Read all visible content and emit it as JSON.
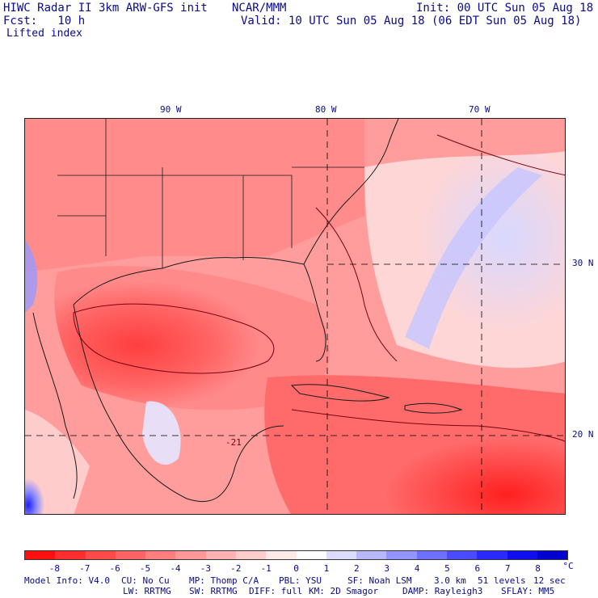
{
  "header": {
    "model_title": "HIWC Radar II 3km ARW-GFS init",
    "org": "NCAR/MMM",
    "init": "Init: 00 UTC Sun 05 Aug 18",
    "forecast": "Fcst:   10 h",
    "valid": "Valid: 10 UTC Sun 05 Aug 18 (06 EDT Sun 05 Aug 18)",
    "field": "Lifted index"
  },
  "map": {
    "longitude_labels": [
      "90 W",
      "80 W",
      "70 W"
    ],
    "latitude_labels": [
      "30 N",
      "20 N"
    ],
    "contour_label": "-21",
    "colors": {
      "land_outline": "#1a1a1a",
      "contour": "#7a0010",
      "grid": "#000000"
    }
  },
  "colorbar": {
    "tick_labels": [
      "-8",
      "-7",
      "-6",
      "-5",
      "-4",
      "-3",
      "-2",
      "-1",
      "0",
      "1",
      "2",
      "3",
      "4",
      "5",
      "6",
      "7",
      "8"
    ],
    "unit": "°C",
    "colors": [
      "#ff1010",
      "#ff2e2e",
      "#ff4a4a",
      "#ff6464",
      "#ff7e7e",
      "#ff9898",
      "#ffb2b2",
      "#ffcccc",
      "#ffeaea",
      "#ffffff",
      "#dcdcff",
      "#b8b8ff",
      "#9494ff",
      "#7070ff",
      "#4c4cff",
      "#2a2aff",
      "#0e0eee",
      "#0000d0"
    ]
  },
  "footer": {
    "line1": [
      "Model Info: V4.0",
      "CU: No Cu",
      "MP: Thomp C/A",
      "PBL: YSU",
      "SF: Noah LSM",
      "3.0 km",
      "51 levels",
      "12 sec"
    ],
    "line2": [
      "LW: RRTMG",
      "SW: RRTMG",
      "DIFF: full",
      "KM: 2D Smagor",
      "DAMP: Rayleigh3",
      "SFLAY: MM5"
    ]
  }
}
